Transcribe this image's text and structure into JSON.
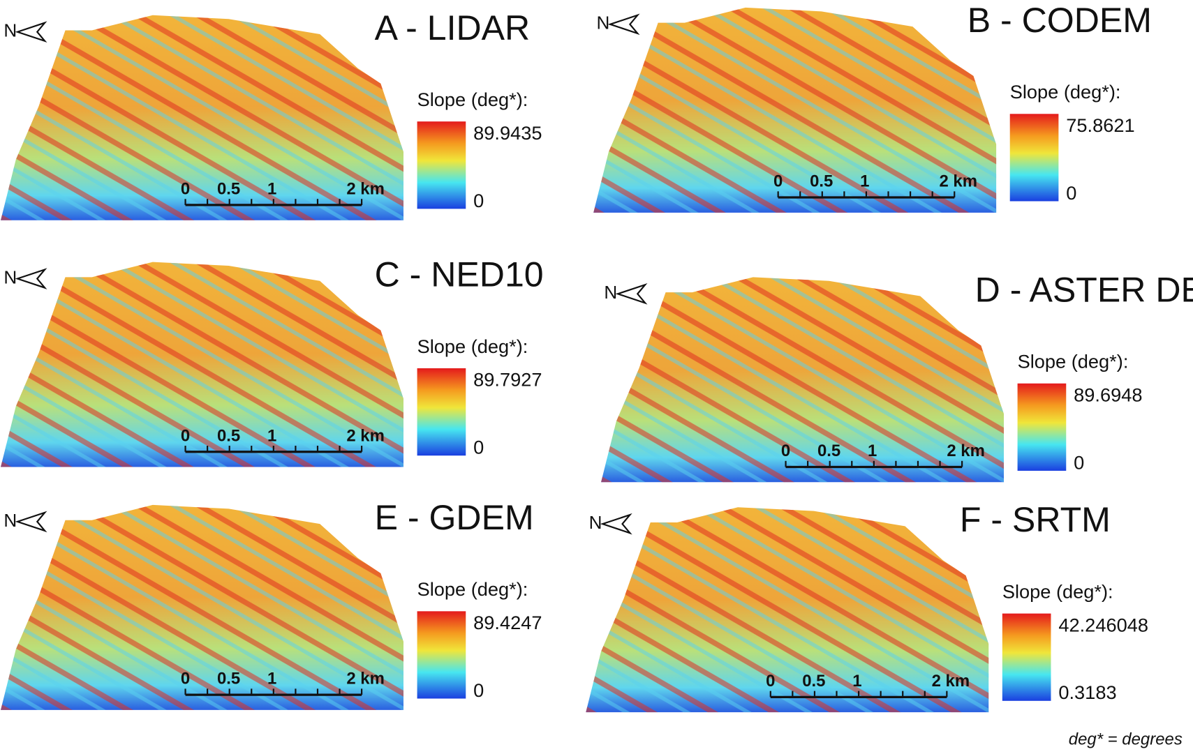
{
  "panels": [
    {
      "title": "A - LIDAR",
      "legend_title": "Slope (deg*):",
      "max": 89.9435,
      "min": 0,
      "north": "N",
      "scale": [
        "0",
        "0.5",
        "1",
        "2 km"
      ]
    },
    {
      "title": "B - CODEM",
      "legend_title": "Slope (deg*):",
      "max": 75.8621,
      "min": 0,
      "north": "N",
      "scale": [
        "0",
        "0.5",
        "1",
        "2 km"
      ]
    },
    {
      "title": "C - NED10",
      "legend_title": "Slope (deg*):",
      "max": 89.7927,
      "min": 0,
      "north": "N",
      "scale": [
        "0",
        "0.5",
        "1",
        "2 km"
      ]
    },
    {
      "title": "D - ASTER DEM",
      "legend_title": "Slope (deg*):",
      "max": 89.6948,
      "min": 0,
      "north": "N",
      "scale": [
        "0",
        "0.5",
        "1",
        "2 km"
      ]
    },
    {
      "title": "E - GDEM",
      "legend_title": "Slope (deg*):",
      "max": 89.4247,
      "min": 0,
      "north": "N",
      "scale": [
        "0",
        "0.5",
        "1",
        "2 km"
      ]
    },
    {
      "title": "F - SRTM",
      "legend_title": "Slope (deg*):",
      "max": 42.246048,
      "min": 0.3183,
      "north": "N",
      "scale": [
        "0",
        "0.5",
        "1",
        "2 km"
      ]
    }
  ],
  "footnote": "deg* = degrees"
}
